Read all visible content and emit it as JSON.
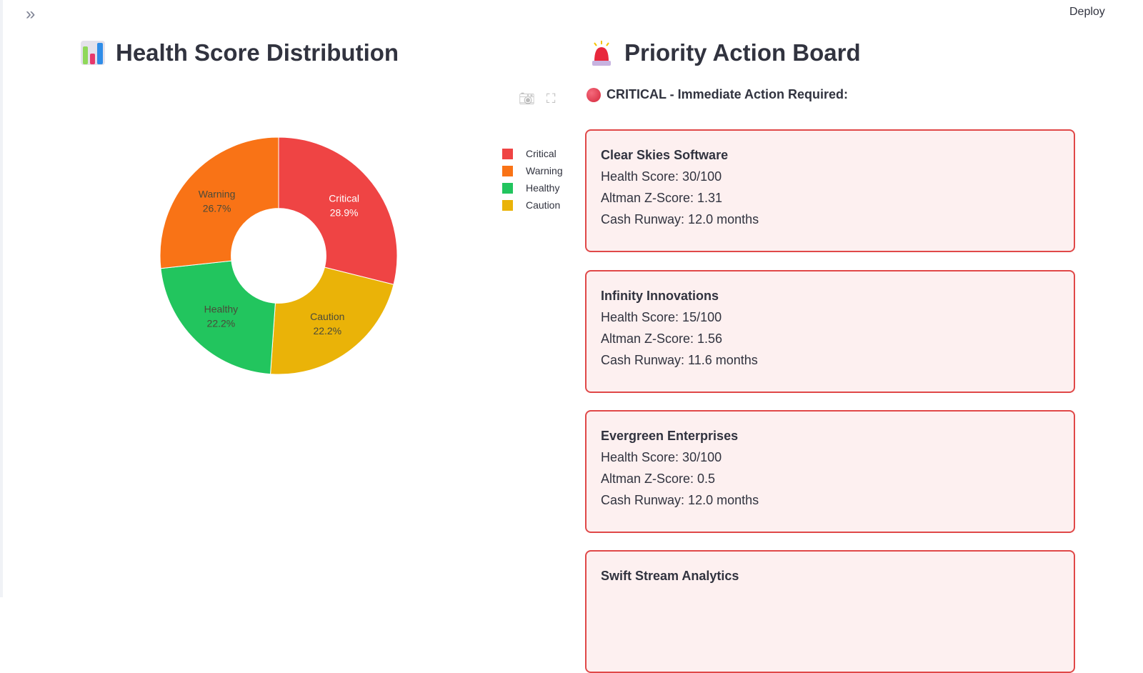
{
  "header": {
    "deploy_label": "Deploy",
    "sidebar_toggle_icon": "chevron-double-right-icon"
  },
  "left": {
    "title": "Health Score Distribution",
    "title_icon": "bar-chart-icon"
  },
  "right": {
    "title": "Priority Action Board",
    "title_icon": "police-siren-icon",
    "critical_header": "CRITICAL - Immediate Action Required:",
    "cards": [
      {
        "name": "Clear Skies Software",
        "health": "Health Score: 30/100",
        "zscore": "Altman Z-Score: 1.31",
        "runway": "Cash Runway: 12.0 months"
      },
      {
        "name": "Infinity Innovations",
        "health": "Health Score: 15/100",
        "zscore": "Altman Z-Score: 1.56",
        "runway": "Cash Runway: 11.6 months"
      },
      {
        "name": "Evergreen Enterprises",
        "health": "Health Score: 30/100",
        "zscore": "Altman Z-Score: 0.5",
        "runway": "Cash Runway: 12.0 months"
      },
      {
        "name": "Swift Stream Analytics"
      }
    ]
  },
  "chart_data": {
    "type": "pie",
    "hole": 0.4,
    "categories": [
      "Critical",
      "Caution",
      "Healthy",
      "Warning"
    ],
    "values": [
      28.9,
      22.2,
      22.2,
      26.7
    ],
    "labels": [
      "28.9%",
      "22.2%",
      "22.2%",
      "26.7%"
    ],
    "colors": [
      "#ef4444",
      "#eab308",
      "#22c55e",
      "#f97316"
    ],
    "legend": {
      "placement": "right",
      "order": [
        "Critical",
        "Warning",
        "Healthy",
        "Caution"
      ]
    }
  }
}
